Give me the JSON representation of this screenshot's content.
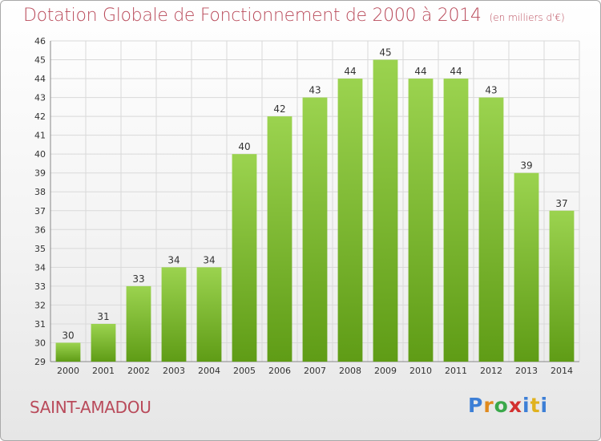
{
  "title": "Dotation Globale de Fonctionnement de 2000 à 2014",
  "subtitle": "(en milliers d'€)",
  "commune": "SAINT-AMADOU",
  "logo": "Proxiti",
  "colors": {
    "title": "#b94a5a",
    "bar_top": "#9bd34f",
    "bar_bottom": "#5f9c16",
    "grid": "#d9d9d9"
  },
  "chart_data": {
    "type": "bar",
    "title": "Dotation Globale de Fonctionnement de 2000 à 2014",
    "subtitle": "(en milliers d'€)",
    "xlabel": "",
    "ylabel": "",
    "categories": [
      "2000",
      "2001",
      "2002",
      "2003",
      "2004",
      "2005",
      "2006",
      "2007",
      "2008",
      "2009",
      "2010",
      "2011",
      "2012",
      "2013",
      "2014"
    ],
    "values": [
      30,
      31,
      33,
      34,
      34,
      40,
      42,
      43,
      44,
      45,
      44,
      44,
      43,
      39,
      37
    ],
    "ylim": [
      29,
      46
    ],
    "yticks": [
      29,
      30,
      31,
      32,
      33,
      34,
      35,
      36,
      37,
      38,
      39,
      40,
      41,
      42,
      43,
      44,
      45,
      46
    ],
    "grid": true,
    "data_labels": true
  }
}
